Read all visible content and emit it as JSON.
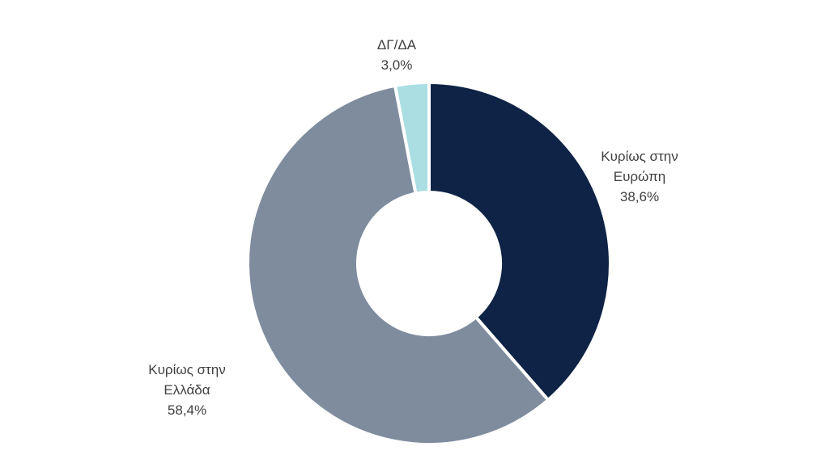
{
  "chart_data": {
    "type": "pie",
    "variant": "donut",
    "title": "",
    "direction": "clockwise",
    "start_angle_deg": 0,
    "inner_radius_ratio": 0.393,
    "separator_color": "#ffffff",
    "background_color": "#ffffff",
    "label_color": "#404040",
    "legend_position": "none",
    "value_unit": "%",
    "decimal_separator": ",",
    "slices": [
      {
        "name": "europe",
        "label": "Κυρίως στην Ευρώπη",
        "value": 38.6,
        "value_label": "38,6%",
        "color": "#0e2345"
      },
      {
        "name": "greece",
        "label": "Κυρίως στην Ελλάδα",
        "value": 58.4,
        "value_label": "58,4%",
        "color": "#7e8c9e"
      },
      {
        "name": "dk-na",
        "label": "ΔΓ/ΔΑ",
        "value": 3.0,
        "value_label": "3,0%",
        "color": "#aadee2"
      }
    ]
  }
}
